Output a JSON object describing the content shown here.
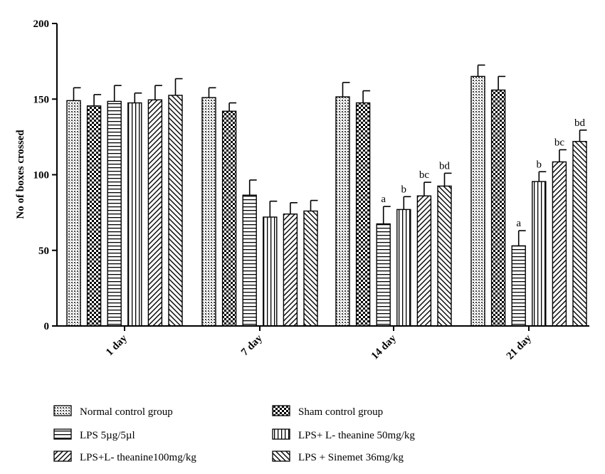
{
  "chart_data": {
    "type": "bar",
    "ylabel": "No of boxes crossed",
    "xlabel": "",
    "ylim": [
      0,
      200
    ],
    "yticks": [
      0,
      50,
      100,
      150,
      200
    ],
    "categories": [
      "1 day",
      "7 day",
      "14 day",
      "21 day"
    ],
    "series": [
      {
        "name": "Normal control group",
        "pattern": "dots",
        "values": [
          149,
          151,
          151.5,
          165
        ],
        "errors": [
          8.5,
          6.5,
          9.5,
          7.5
        ],
        "labels": [
          "",
          "",
          "",
          ""
        ]
      },
      {
        "name": "Sham control group",
        "pattern": "checker",
        "values": [
          145.5,
          142,
          147.5,
          156
        ],
        "errors": [
          7.5,
          5.5,
          8,
          9
        ],
        "labels": [
          "",
          "",
          "",
          ""
        ]
      },
      {
        "name": "LPS 5µg/5µl",
        "pattern": "hlines",
        "values": [
          148.5,
          86.5,
          67.5,
          53
        ],
        "errors": [
          10.5,
          10,
          11.5,
          10
        ],
        "labels": [
          "",
          "",
          "a",
          "a"
        ]
      },
      {
        "name": "LPS+ L- theanine 50mg/kg",
        "pattern": "vlines",
        "values": [
          147.5,
          72,
          77,
          95.5
        ],
        "errors": [
          6.5,
          10.5,
          8.5,
          6.5
        ],
        "labels": [
          "",
          "",
          "b",
          "b"
        ]
      },
      {
        "name": "LPS+L- theanine100mg/kg",
        "pattern": "diag-right",
        "values": [
          149.5,
          74,
          86,
          108.5
        ],
        "errors": [
          9.5,
          7.5,
          9,
          8
        ],
        "labels": [
          "",
          "",
          "bc",
          "bc"
        ]
      },
      {
        "name": "LPS  + Sinemet 36mg/kg",
        "pattern": "diag-left",
        "values": [
          152.5,
          76,
          92.5,
          122
        ],
        "errors": [
          11,
          7,
          8.5,
          7.5
        ],
        "labels": [
          "",
          "",
          "bd",
          "bd"
        ]
      }
    ],
    "legend_position": "bottom, two columns",
    "grid": false
  }
}
